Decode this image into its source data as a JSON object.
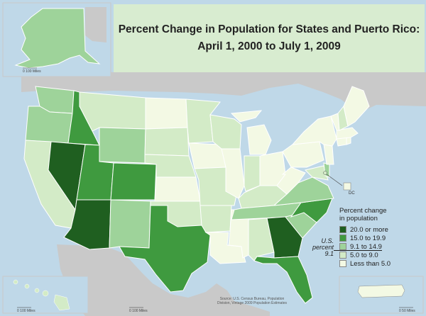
{
  "title": {
    "line1": "Percent Change in Population for States and Puerto Rico:",
    "line2": "April 1, 2000 to July 1, 2009"
  },
  "legend": {
    "title_line1": "Percent change",
    "title_line2": "in population",
    "items": [
      {
        "label": "20.0 or more",
        "color": "#1f5f20"
      },
      {
        "label": "15.0 to 19.9",
        "color": "#3f9a3f"
      },
      {
        "label": "9.1 to 14.9",
        "color": "#9ed39a"
      },
      {
        "label": "5.0 to 9.0",
        "color": "#d3ebc7"
      },
      {
        "label": "Less than 5.0",
        "color": "#f3f9e4"
      }
    ],
    "us_label_line1": "U.S.",
    "us_label_line2": "percent",
    "us_label_line3": "9.1"
  },
  "labels": {
    "dc": "DC",
    "scale_alaska": "0     100 Miles",
    "scale_hawaii": "0     100 Miles",
    "scale_mainland": "0     100 Miles",
    "scale_pr": "0     50 Miles",
    "source_line1": "Source: U.S. Census Bureau, Population",
    "source_line2": "Division, Vintage 2009 Population Estimates"
  },
  "colors": {
    "background_sea": "#bfd8e8",
    "neighbor_land": "#c9c9c9",
    "title_panel": "#d8ecd0",
    "state_border": "#ffffff"
  },
  "state_classes": {
    "NV": "20.0 or more",
    "AZ": "20.0 or more",
    "GA": "20.0 or more",
    "ID": "15.0 to 19.9",
    "UT": "15.0 to 19.9",
    "CO": "15.0 to 19.9",
    "TX": "15.0 to 19.9",
    "NC": "15.0 to 19.9",
    "FL": "15.0 to 19.9",
    "WA": "9.1 to 14.9",
    "OR": "9.1 to 14.9",
    "WY": "9.1 to 14.9",
    "NM": "9.1 to 14.9",
    "SC": "9.1 to 14.9",
    "TN": "9.1 to 14.9",
    "VA": "9.1 to 14.9",
    "DE": "9.1 to 14.9",
    "AK": "9.1 to 14.9",
    "CA": "5.0 to 9.0",
    "MT": "5.0 to 9.0",
    "SD": "5.0 to 9.0",
    "MN": "5.0 to 9.0",
    "NE": "5.0 to 9.0",
    "OK": "5.0 to 9.0",
    "AR": "5.0 to 9.0",
    "MO": "5.0 to 9.0",
    "AL": "5.0 to 9.0",
    "IN": "5.0 to 9.0",
    "KY": "5.0 to 9.0",
    "NH": "5.0 to 9.0",
    "MD": "5.0 to 9.0",
    "HI": "5.0 to 9.0",
    "WI": "5.0 to 9.0",
    "ND": "Less than 5.0",
    "KS": "Less than 5.0",
    "IA": "Less than 5.0",
    "IL": "Less than 5.0",
    "MI": "Less than 5.0",
    "OH": "Less than 5.0",
    "PA": "Less than 5.0",
    "NY": "Less than 5.0",
    "ME": "Less than 5.0",
    "VT": "Less than 5.0",
    "MA": "Less than 5.0",
    "CT": "Less than 5.0",
    "RI": "Less than 5.0",
    "NJ": "Less than 5.0",
    "WV": "Less than 5.0",
    "LA": "Less than 5.0",
    "MS": "Less than 5.0",
    "PR": "Less than 5.0"
  }
}
